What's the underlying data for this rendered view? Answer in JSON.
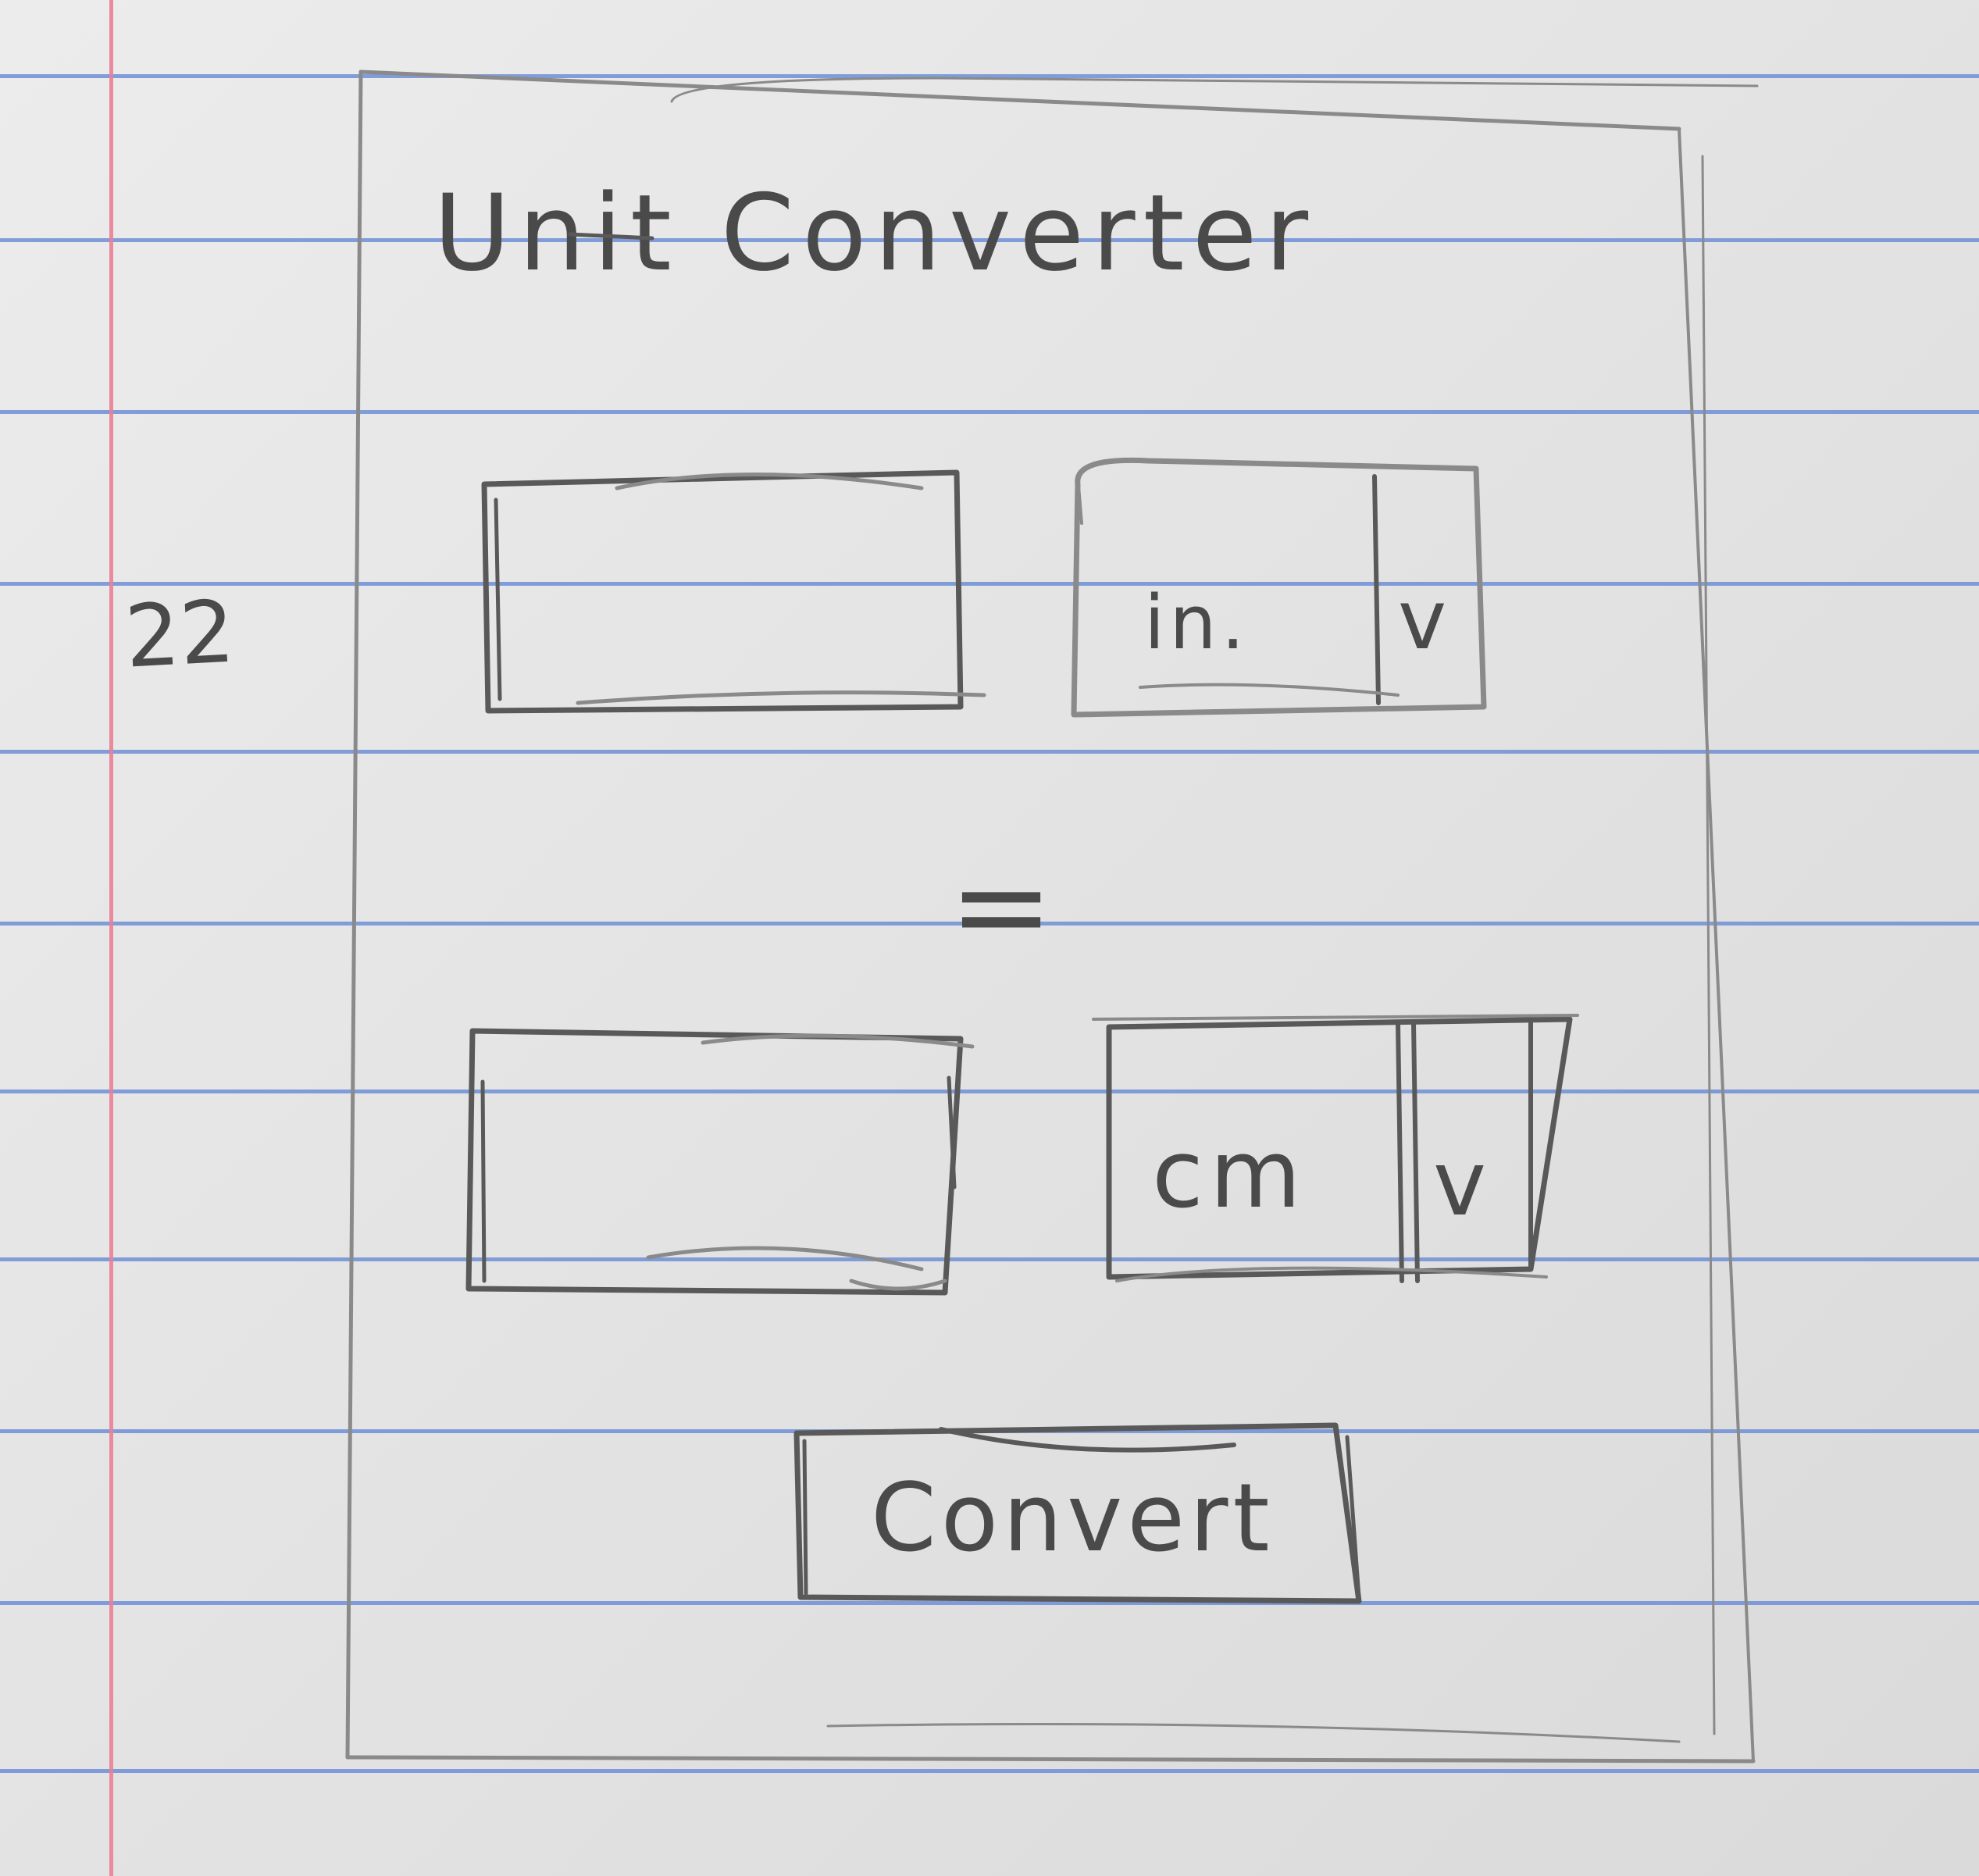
{
  "app": {
    "title": "Unit Converter"
  },
  "margin_note": "22",
  "from": {
    "value": "",
    "unit": "in.",
    "dropdown_glyph": "v"
  },
  "equals_sign": "=",
  "to": {
    "value": "",
    "unit": "cm",
    "dropdown_glyph": "v"
  },
  "convert_button": {
    "label": "Convert"
  },
  "colors": {
    "paper": "#e6e6e6",
    "rule_blue": "#6f8fd6",
    "margin_red": "#ea7f97",
    "pencil": "#595959"
  }
}
